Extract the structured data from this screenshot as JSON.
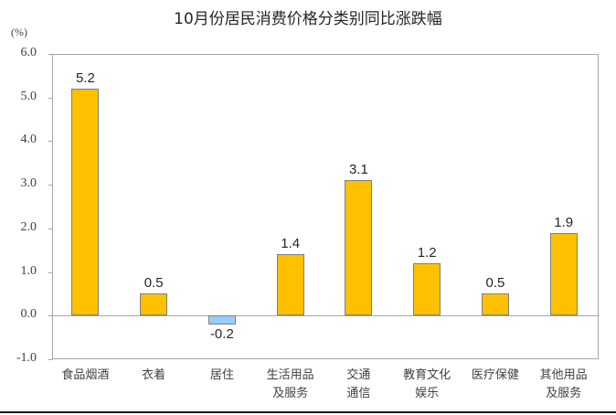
{
  "chart_data": {
    "type": "bar",
    "title": "10月份居民消费价格分类别同比涨跌幅",
    "xlabel": "",
    "ylabel": "(%)",
    "ylim": [
      -1.0,
      6.0
    ],
    "yticks": [
      "6.0",
      "5.0",
      "4.0",
      "3.0",
      "2.0",
      "1.0",
      "0.0",
      "-1.0"
    ],
    "grid": false,
    "legend": null,
    "categories": [
      "食品烟酒",
      "衣着",
      "居住",
      "生活用品\n及服务",
      "交通\n通信",
      "教育文化\n娱乐",
      "医疗保健",
      "其他用品\n及服务"
    ],
    "values": [
      5.2,
      0.5,
      -0.2,
      1.4,
      3.1,
      1.2,
      0.5,
      1.9
    ],
    "value_labels": [
      "5.2",
      "0.5",
      "-0.2",
      "1.4",
      "3.1",
      "1.2",
      "0.5",
      "1.9"
    ],
    "colors": {
      "positive": "#FFC000",
      "negative": "#99CCFF",
      "border": "#7F7F7F",
      "axis": "#A6A6A6"
    }
  }
}
